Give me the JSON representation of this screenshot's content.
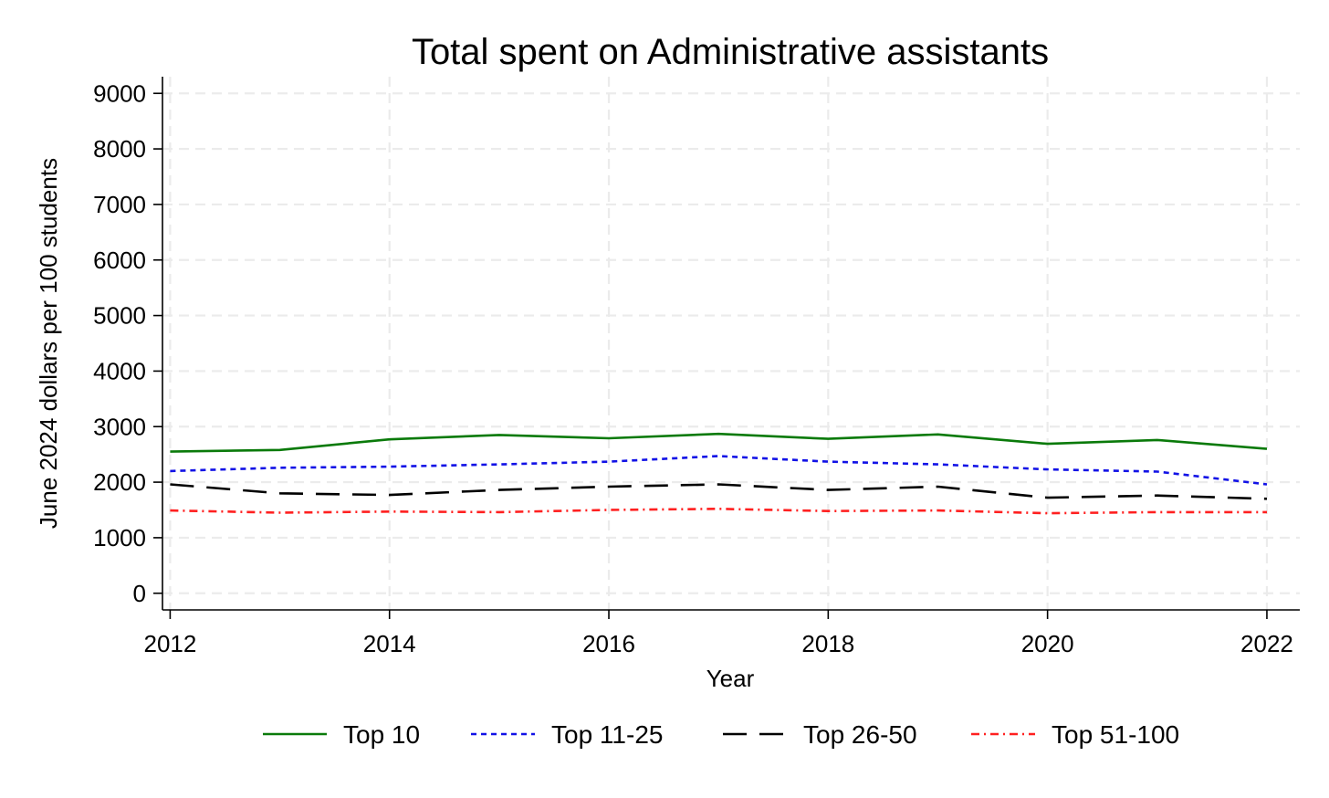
{
  "chart_data": {
    "type": "line",
    "title": "Total spent on Administrative assistants",
    "xlabel": "Year",
    "ylabel": "June 2024 dollars per 100 students",
    "x": [
      2012,
      2013,
      2014,
      2015,
      2016,
      2017,
      2018,
      2019,
      2020,
      2021,
      2022
    ],
    "xticks": [
      2012,
      2014,
      2016,
      2018,
      2020,
      2022
    ],
    "yticks": [
      0,
      1000,
      2000,
      3000,
      4000,
      5000,
      6000,
      7000,
      8000,
      9000
    ],
    "xlim": [
      2011.93,
      2022.3
    ],
    "ylim": [
      -300,
      9300
    ],
    "grid": true,
    "legend_position": "bottom",
    "series": [
      {
        "name": "Top 10",
        "color": "#0a7a0a",
        "dash": "solid",
        "values": [
          2550,
          2580,
          2770,
          2850,
          2790,
          2870,
          2780,
          2860,
          2690,
          2760,
          2600
        ]
      },
      {
        "name": "Top 11-25",
        "color": "#1212e6",
        "dash": "short-dash",
        "values": [
          2200,
          2260,
          2280,
          2320,
          2370,
          2470,
          2370,
          2320,
          2230,
          2190,
          1960
        ]
      },
      {
        "name": "Top 26-50",
        "color": "#000000",
        "dash": "long-dash",
        "values": [
          1960,
          1800,
          1770,
          1860,
          1920,
          1960,
          1860,
          1920,
          1720,
          1760,
          1700
        ]
      },
      {
        "name": "Top 51-100",
        "color": "#ff2020",
        "dash": "dash-dot",
        "values": [
          1490,
          1450,
          1470,
          1460,
          1500,
          1520,
          1480,
          1490,
          1440,
          1460,
          1460
        ]
      }
    ]
  }
}
